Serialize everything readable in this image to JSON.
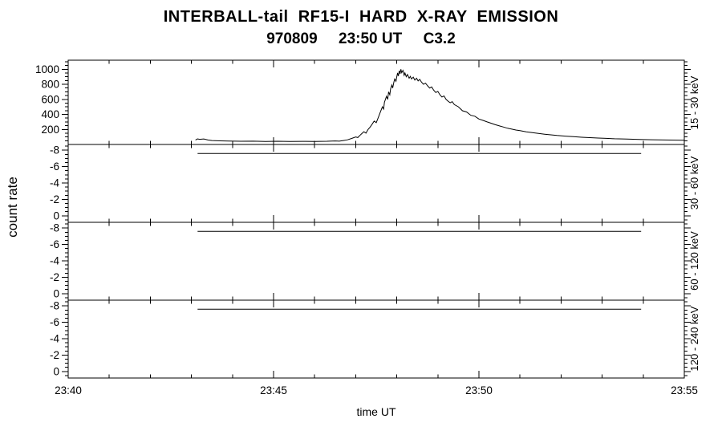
{
  "chart_data": {
    "type": "line",
    "title": "INTERBALL-tail  RF15-I  HARD  X-RAY  EMISSION",
    "subtitle": "970809     23:50 UT     C3.2",
    "xlabel": "time UT",
    "ylabel": "count rate",
    "x_unit": "minutes after 23:40 UT",
    "x_range": [
      0,
      15
    ],
    "x_minor_step": 1,
    "x_ticks": [
      {
        "t": 0,
        "label": "23:40"
      },
      {
        "t": 5,
        "label": "23:45"
      },
      {
        "t": 10,
        "label": "23:50"
      },
      {
        "t": 15,
        "label": "23:55"
      }
    ],
    "grid": false,
    "legend": "none",
    "line_color": "#000000",
    "background": "#ffffff",
    "panels": [
      {
        "label": "15 - 30 keV",
        "ylim": [
          1120,
          0
        ],
        "yticks": [
          {
            "v": 1000,
            "label": "1000"
          },
          {
            "v": 800,
            "label": "800"
          },
          {
            "v": 600,
            "label": "600"
          },
          {
            "v": 400,
            "label": "400"
          },
          {
            "v": 200,
            "label": "200"
          }
        ],
        "ytick_minor_step": 50,
        "series": {
          "x": [
            3.1,
            3.15,
            3.2,
            3.3,
            3.4,
            3.5,
            3.7,
            3.9,
            4.2,
            4.5,
            4.8,
            5.1,
            5.4,
            5.7,
            6.0,
            6.3,
            6.5,
            6.6,
            6.7,
            6.8,
            6.9,
            7.0,
            7.05,
            7.1,
            7.15,
            7.2,
            7.25,
            7.3,
            7.35,
            7.4,
            7.45,
            7.5,
            7.55,
            7.6,
            7.65,
            7.68,
            7.7,
            7.75,
            7.78,
            7.8,
            7.83,
            7.85,
            7.88,
            7.9,
            7.93,
            7.95,
            7.98,
            8.0,
            8.02,
            8.04,
            8.06,
            8.08,
            8.1,
            8.12,
            8.15,
            8.18,
            8.2,
            8.23,
            8.26,
            8.3,
            8.33,
            8.36,
            8.4,
            8.44,
            8.48,
            8.52,
            8.56,
            8.6,
            8.65,
            8.7,
            8.75,
            8.8,
            8.85,
            8.9,
            8.95,
            9.0,
            9.05,
            9.1,
            9.15,
            9.2,
            9.25,
            9.3,
            9.35,
            9.4,
            9.5,
            9.6,
            9.7,
            9.8,
            9.9,
            10.0,
            10.1,
            10.2,
            10.3,
            10.4,
            10.5,
            10.6,
            10.7,
            10.8,
            10.9,
            11.0,
            11.15,
            11.3,
            11.45,
            11.6,
            11.75,
            11.9,
            12.1,
            12.3,
            12.5,
            12.7,
            12.9,
            13.1,
            13.3,
            13.6,
            13.9,
            14.2,
            14.5,
            14.8,
            15.0
          ],
          "y": [
            60,
            75,
            68,
            74,
            60,
            52,
            48,
            45,
            43,
            44,
            41,
            43,
            40,
            42,
            41,
            43,
            47,
            44,
            52,
            62,
            80,
            100,
            92,
            120,
            145,
            170,
            150,
            200,
            230,
            270,
            310,
            290,
            360,
            430,
            500,
            470,
            560,
            640,
            600,
            700,
            660,
            740,
            790,
            750,
            830,
            870,
            840,
            900,
            950,
            910,
            980,
            940,
            1000,
            955,
            985,
            920,
            950,
            900,
            930,
            880,
            905,
            870,
            895,
            855,
            880,
            845,
            865,
            830,
            800,
            815,
            780,
            750,
            765,
            720,
            690,
            705,
            660,
            630,
            645,
            600,
            575,
            555,
            570,
            530,
            500,
            448,
            432,
            388,
            376,
            338,
            320,
            300,
            282,
            262,
            246,
            231,
            216,
            204,
            192,
            183,
            168,
            157,
            146,
            137,
            128,
            120,
            111,
            104,
            96,
            91,
            85,
            81,
            76,
            71,
            67,
            63,
            60,
            58,
            57
          ]
        }
      },
      {
        "label": "30 - 60 keV",
        "ylim": [
          -8.7,
          0.8
        ],
        "yticks": [
          {
            "v": -8,
            "label": "-8"
          },
          {
            "v": -6,
            "label": "-6"
          },
          {
            "v": -4,
            "label": "-4"
          },
          {
            "v": -2,
            "label": "-2"
          },
          {
            "v": 0,
            "label": "0"
          }
        ],
        "ytick_minor_step": 0.5,
        "series": {
          "x": [
            3.15,
            13.95
          ],
          "y": [
            -7.6,
            -7.6
          ]
        }
      },
      {
        "label": "60 - 120 keV",
        "ylim": [
          -8.7,
          0.8
        ],
        "yticks": [
          {
            "v": -8,
            "label": "-8"
          },
          {
            "v": -6,
            "label": "-6"
          },
          {
            "v": -4,
            "label": "-4"
          },
          {
            "v": -2,
            "label": "-2"
          },
          {
            "v": 0,
            "label": "0"
          }
        ],
        "ytick_minor_step": 0.5,
        "series": {
          "x": [
            3.15,
            13.95
          ],
          "y": [
            -7.6,
            -7.6
          ]
        }
      },
      {
        "label": "120 - 240 keV",
        "ylim": [
          -8.7,
          0.8
        ],
        "yticks": [
          {
            "v": -8,
            "label": "-8"
          },
          {
            "v": -6,
            "label": "-6"
          },
          {
            "v": -4,
            "label": "-4"
          },
          {
            "v": -2,
            "label": "-2"
          },
          {
            "v": 0,
            "label": "0"
          }
        ],
        "ytick_minor_step": 0.5,
        "series": {
          "x": [
            3.15,
            13.95
          ],
          "y": [
            -7.6,
            -7.6
          ]
        }
      }
    ]
  }
}
